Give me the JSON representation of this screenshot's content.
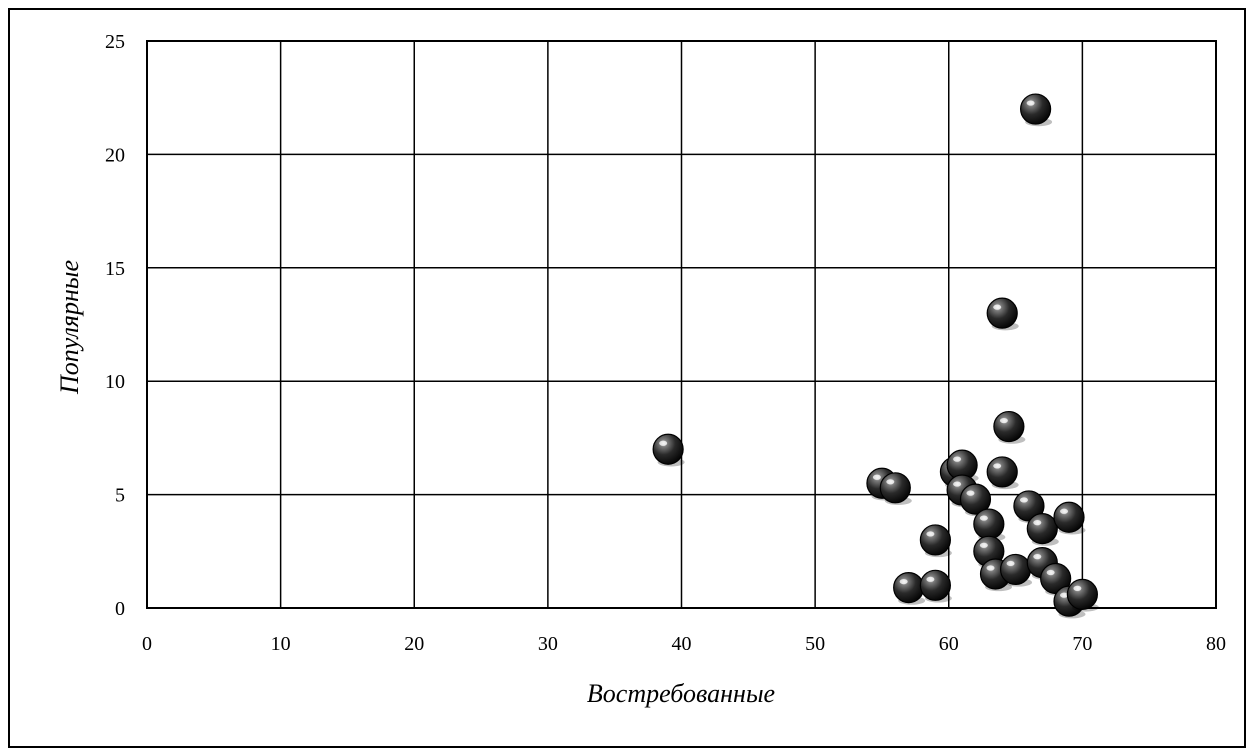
{
  "chart_data": {
    "type": "scatter",
    "title": "",
    "xlabel": "Востребованные",
    "ylabel": "Популярные",
    "xlim": [
      0,
      80
    ],
    "ylim": [
      0,
      25
    ],
    "grid": true,
    "legend": "none",
    "x_ticks": [
      "0",
      "10",
      "20",
      "30",
      "40",
      "50",
      "60",
      "70",
      "80"
    ],
    "y_ticks": [
      "0",
      "5",
      "10",
      "15",
      "20",
      "25"
    ],
    "marker_color": "#1f1f1f",
    "points": [
      {
        "x": 39.0,
        "y": 7.0
      },
      {
        "x": 55.0,
        "y": 5.5
      },
      {
        "x": 56.0,
        "y": 5.3
      },
      {
        "x": 57.0,
        "y": 0.9
      },
      {
        "x": 59.0,
        "y": 1.0
      },
      {
        "x": 59.0,
        "y": 3.0
      },
      {
        "x": 60.5,
        "y": 6.0
      },
      {
        "x": 61.0,
        "y": 6.3
      },
      {
        "x": 61.0,
        "y": 5.2
      },
      {
        "x": 62.0,
        "y": 4.8
      },
      {
        "x": 63.0,
        "y": 3.7
      },
      {
        "x": 63.0,
        "y": 2.5
      },
      {
        "x": 63.5,
        "y": 1.5
      },
      {
        "x": 64.0,
        "y": 13.0
      },
      {
        "x": 64.0,
        "y": 6.0
      },
      {
        "x": 64.5,
        "y": 8.0
      },
      {
        "x": 65.0,
        "y": 1.7
      },
      {
        "x": 66.0,
        "y": 4.5
      },
      {
        "x": 66.5,
        "y": 22.0
      },
      {
        "x": 67.0,
        "y": 3.5
      },
      {
        "x": 67.0,
        "y": 2.0
      },
      {
        "x": 68.0,
        "y": 1.3
      },
      {
        "x": 69.0,
        "y": 4.0
      },
      {
        "x": 69.0,
        "y": 0.3
      },
      {
        "x": 70.0,
        "y": 0.6
      }
    ]
  }
}
